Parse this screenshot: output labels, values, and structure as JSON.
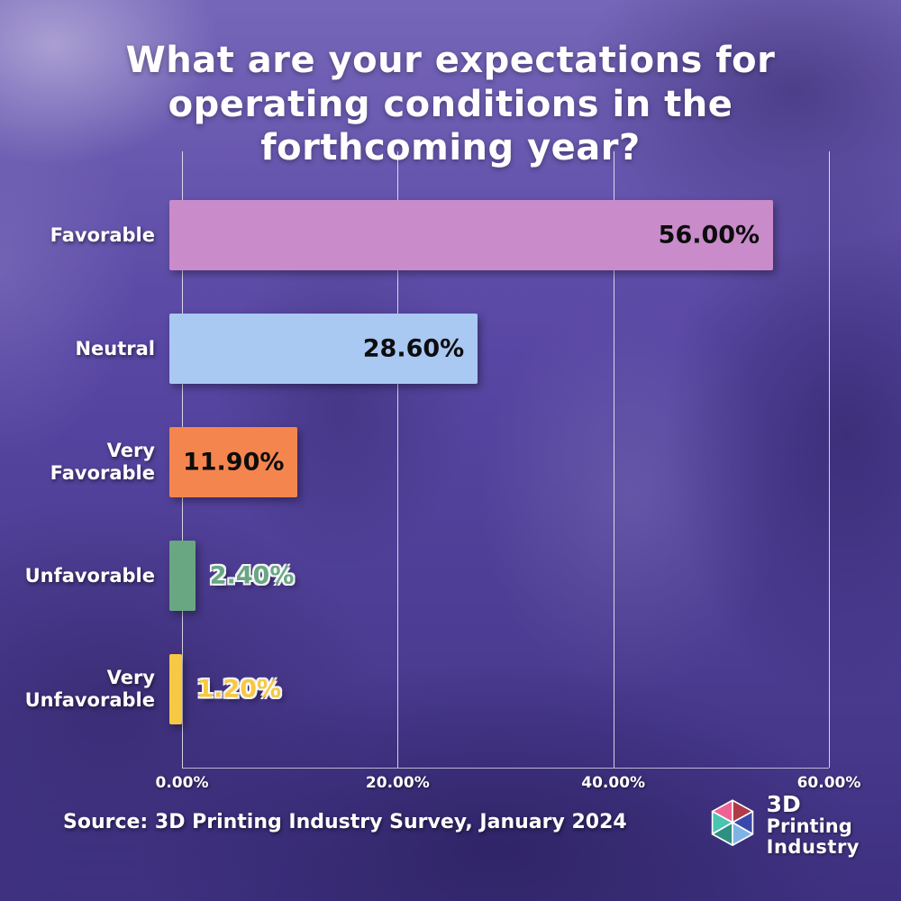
{
  "chart_data": {
    "type": "bar",
    "orientation": "horizontal",
    "title": "What are your expectations for operating conditions in the forthcoming year?",
    "categories": [
      "Favorable",
      "Neutral",
      "Very Favorable",
      "Unfavorable",
      "Very Unfavorable"
    ],
    "values": [
      56.0,
      28.6,
      11.9,
      2.4,
      1.2
    ],
    "value_labels": [
      "56.00%",
      "28.60%",
      "11.90%",
      "2.40%",
      "1.20%"
    ],
    "bar_colors": [
      "#c98bca",
      "#a9c8f2",
      "#f5854e",
      "#69a783",
      "#f7c843"
    ],
    "value_label_colors": [
      "#0d0d0d",
      "#0d0d0d",
      "#0d0d0d",
      "#69a783",
      "#f7c843"
    ],
    "label_positions": [
      "inside-end",
      "inside-end",
      "inside-center",
      "outside",
      "outside"
    ],
    "xlabel": "",
    "ylabel": "",
    "xlim": [
      0,
      60
    ],
    "x_ticks": [
      0,
      20,
      40,
      60
    ],
    "x_tick_labels": [
      "0.00%",
      "20.00%",
      "40.00%",
      "60.00%"
    ],
    "grid": "vertical",
    "legend": "none"
  },
  "source": "Source: 3D Printing Industry Survey, January 2024",
  "logo": {
    "lines": [
      "3D",
      "Printing",
      "Industry"
    ]
  },
  "colors": {
    "background_overlay": "#52409f",
    "grid": "#ffffff",
    "title_text": "#ffffff"
  }
}
